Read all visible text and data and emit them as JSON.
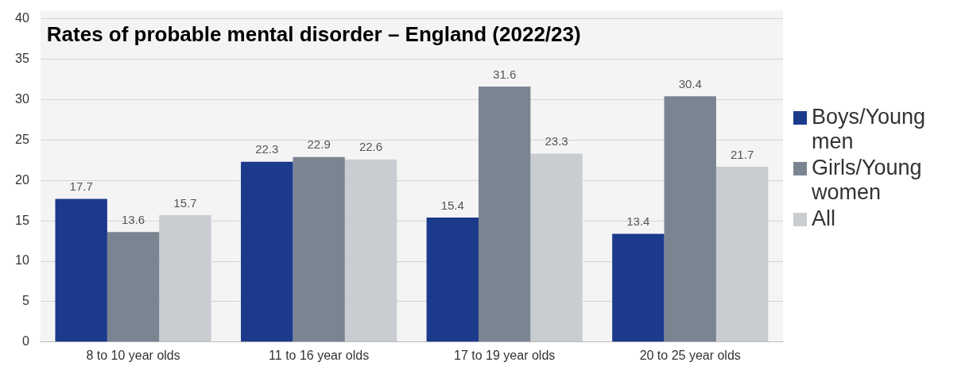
{
  "chart_data": {
    "type": "bar",
    "title": "Rates of probable mental disorder – England (2022/23)",
    "categories": [
      "8 to 10 year olds",
      "11 to 16 year olds",
      "17 to 19 year olds",
      "20 to 25 year olds"
    ],
    "series": [
      {
        "name": "Boys/Young men",
        "color": "#1b3a8c",
        "values": [
          17.7,
          22.3,
          15.4,
          13.4
        ]
      },
      {
        "name": "Girls/Young women",
        "color": "#7b8591",
        "values": [
          13.6,
          22.9,
          31.6,
          30.4
        ]
      },
      {
        "name": "All",
        "color": "#c9cdd1",
        "values": [
          15.7,
          22.6,
          23.3,
          21.7
        ]
      }
    ],
    "ylim": [
      0,
      40
    ],
    "yticks": [
      0,
      5,
      10,
      15,
      20,
      25,
      30,
      35,
      40
    ],
    "grid": "y",
    "legend": "right",
    "data_labels": true
  }
}
